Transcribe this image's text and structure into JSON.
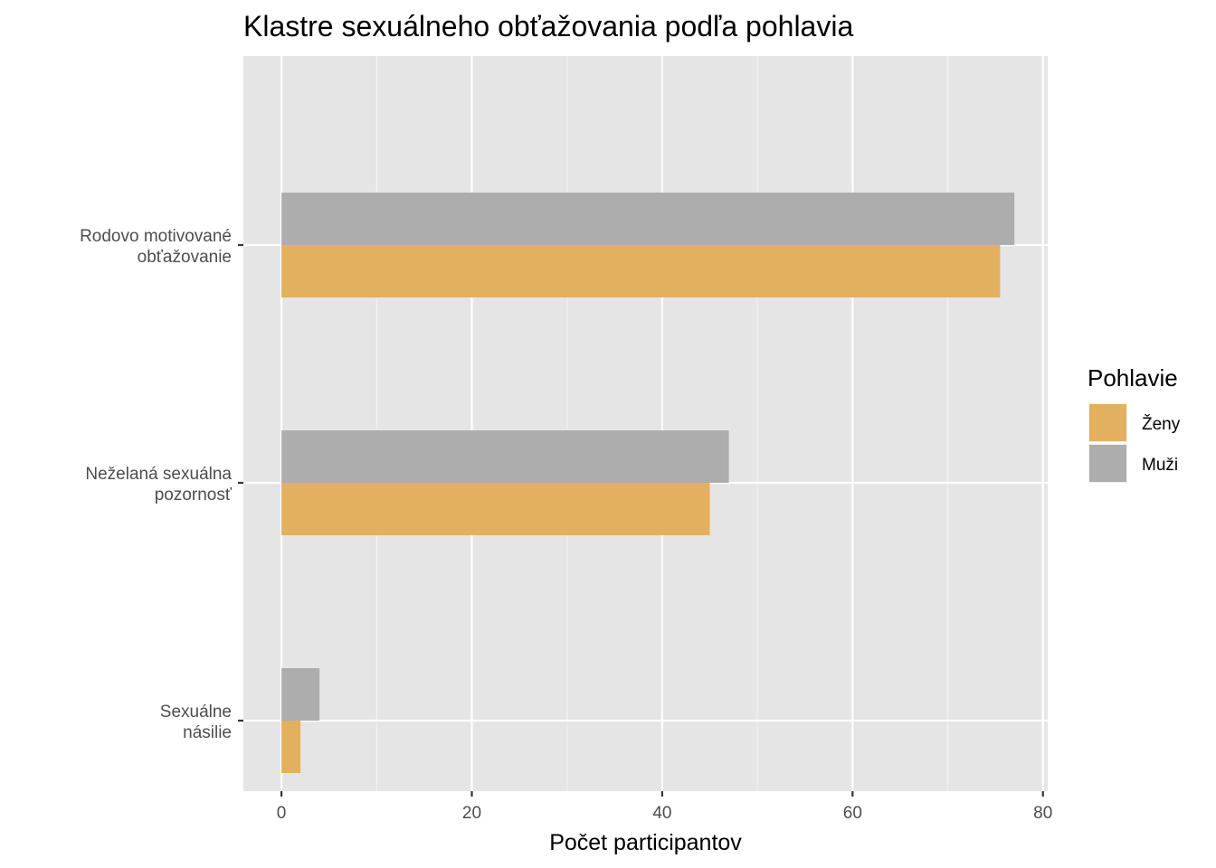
{
  "chart_data": {
    "type": "bar",
    "orientation": "horizontal",
    "title": "Klastre sexuálneho obťažovania podľa pohlavia",
    "xlabel": "Počet participantov",
    "ylabel": "",
    "categories": [
      [
        "Rodovo motivované",
        "obťažovanie"
      ],
      [
        "Neželaná sexuálna",
        "pozornosť"
      ],
      [
        "Sexuálne",
        "násilie"
      ]
    ],
    "series": [
      {
        "name": "Ženy",
        "values": [
          75.5,
          45,
          2
        ],
        "color": "#e3b05f"
      },
      {
        "name": "Muži",
        "values": [
          77,
          47,
          4
        ],
        "color": "#adadad"
      }
    ],
    "xlim": [
      -4,
      80.5
    ],
    "xticks": [
      0,
      20,
      40,
      60,
      80
    ],
    "grid": true,
    "legend": {
      "title": "Pohlavie",
      "placement": "right"
    }
  }
}
